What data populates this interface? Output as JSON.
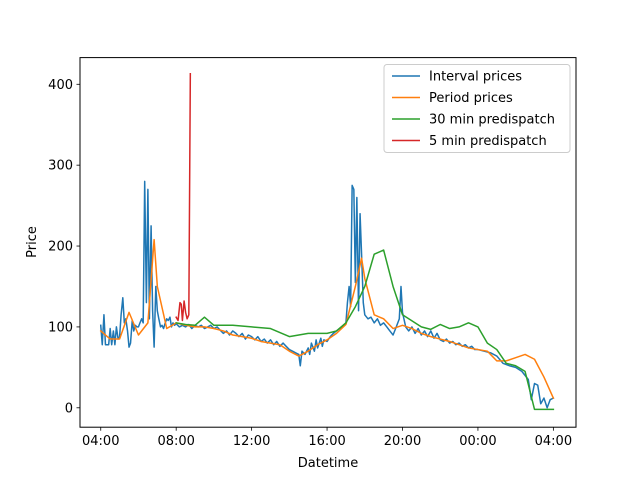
{
  "chart_data": {
    "type": "line",
    "title": "",
    "xlabel": "Datetime",
    "ylabel": "Price",
    "x_unit": "hours from 04:00 on the first day",
    "xlim": [
      -1.1,
      25.2
    ],
    "ylim": [
      -24,
      433
    ],
    "x_ticks": [
      {
        "x": 0,
        "label": "04:00"
      },
      {
        "x": 4,
        "label": "08:00"
      },
      {
        "x": 8,
        "label": "12:00"
      },
      {
        "x": 12,
        "label": "16:00"
      },
      {
        "x": 16,
        "label": "20:00"
      },
      {
        "x": 20,
        "label": "00:00"
      },
      {
        "x": 24,
        "label": "04:00"
      }
    ],
    "y_ticks": [
      {
        "y": 0,
        "label": "0"
      },
      {
        "y": 100,
        "label": "100"
      },
      {
        "y": 200,
        "label": "200"
      },
      {
        "y": 300,
        "label": "300"
      },
      {
        "y": 400,
        "label": "400"
      }
    ],
    "grid": false,
    "legend_position": "top-right",
    "series": [
      {
        "name": "Interval prices",
        "color": "#1f77b4",
        "points": [
          [
            0.0,
            102
          ],
          [
            0.08,
            78
          ],
          [
            0.17,
            115
          ],
          [
            0.25,
            78
          ],
          [
            0.33,
            78
          ],
          [
            0.42,
            78
          ],
          [
            0.5,
            98
          ],
          [
            0.58,
            78
          ],
          [
            0.67,
            95
          ],
          [
            0.75,
            78
          ],
          [
            0.83,
            100
          ],
          [
            0.92,
            85
          ],
          [
            1.0,
            88
          ],
          [
            1.08,
            115
          ],
          [
            1.17,
            136
          ],
          [
            1.25,
            105
          ],
          [
            1.33,
            110
          ],
          [
            1.42,
            95
          ],
          [
            1.5,
            75
          ],
          [
            1.58,
            80
          ],
          [
            1.67,
            108
          ],
          [
            1.75,
            95
          ],
          [
            1.83,
            102
          ],
          [
            1.92,
            100
          ],
          [
            2.0,
            100
          ],
          [
            2.08,
            105
          ],
          [
            2.17,
            110
          ],
          [
            2.25,
            105
          ],
          [
            2.33,
            280
          ],
          [
            2.42,
            130
          ],
          [
            2.5,
            270
          ],
          [
            2.58,
            110
          ],
          [
            2.67,
            225
          ],
          [
            2.75,
            120
          ],
          [
            2.83,
            75
          ],
          [
            2.92,
            150
          ],
          [
            3.0,
            120
          ],
          [
            3.08,
            110
          ],
          [
            3.17,
            100
          ],
          [
            3.25,
            102
          ],
          [
            3.33,
            98
          ],
          [
            3.42,
            105
          ],
          [
            3.5,
            110
          ],
          [
            3.58,
            108
          ],
          [
            3.67,
            112
          ],
          [
            3.75,
            100
          ],
          [
            3.83,
            105
          ],
          [
            3.92,
            102
          ],
          [
            4.0,
            104
          ],
          [
            4.17,
            100
          ],
          [
            4.33,
            102
          ],
          [
            4.5,
            100
          ],
          [
            4.67,
            103
          ],
          [
            4.83,
            98
          ],
          [
            5.0,
            102
          ],
          [
            5.17,
            100
          ],
          [
            5.33,
            102
          ],
          [
            5.5,
            98
          ],
          [
            5.67,
            100
          ],
          [
            5.83,
            102
          ],
          [
            6.0,
            98
          ],
          [
            6.17,
            100
          ],
          [
            6.33,
            96
          ],
          [
            6.5,
            92
          ],
          [
            6.67,
            95
          ],
          [
            6.83,
            90
          ],
          [
            7.0,
            95
          ],
          [
            7.17,
            92
          ],
          [
            7.33,
            88
          ],
          [
            7.5,
            92
          ],
          [
            7.67,
            85
          ],
          [
            7.83,
            90
          ],
          [
            8.0,
            88
          ],
          [
            8.17,
            84
          ],
          [
            8.33,
            88
          ],
          [
            8.5,
            82
          ],
          [
            8.67,
            85
          ],
          [
            8.83,
            80
          ],
          [
            9.0,
            84
          ],
          [
            9.17,
            78
          ],
          [
            9.33,
            82
          ],
          [
            9.5,
            76
          ],
          [
            9.67,
            80
          ],
          [
            9.83,
            76
          ],
          [
            10.0,
            72
          ],
          [
            10.17,
            70
          ],
          [
            10.33,
            68
          ],
          [
            10.5,
            66
          ],
          [
            10.58,
            52
          ],
          [
            10.67,
            70
          ],
          [
            10.83,
            66
          ],
          [
            11.0,
            74
          ],
          [
            11.08,
            66
          ],
          [
            11.17,
            80
          ],
          [
            11.33,
            70
          ],
          [
            11.42,
            84
          ],
          [
            11.5,
            74
          ],
          [
            11.67,
            86
          ],
          [
            11.75,
            76
          ],
          [
            11.83,
            84
          ],
          [
            12.0,
            82
          ],
          [
            12.17,
            88
          ],
          [
            12.33,
            92
          ],
          [
            12.5,
            95
          ],
          [
            12.67,
            98
          ],
          [
            12.83,
            100
          ],
          [
            13.0,
            105
          ],
          [
            13.08,
            130
          ],
          [
            13.17,
            150
          ],
          [
            13.25,
            125
          ],
          [
            13.33,
            275
          ],
          [
            13.42,
            270
          ],
          [
            13.5,
            155
          ],
          [
            13.58,
            260
          ],
          [
            13.67,
            120
          ],
          [
            13.75,
            240
          ],
          [
            13.83,
            190
          ],
          [
            13.92,
            130
          ],
          [
            14.0,
            115
          ],
          [
            14.17,
            110
          ],
          [
            14.33,
            112
          ],
          [
            14.5,
            105
          ],
          [
            14.67,
            110
          ],
          [
            14.83,
            102
          ],
          [
            15.0,
            105
          ],
          [
            15.17,
            100
          ],
          [
            15.33,
            95
          ],
          [
            15.5,
            90
          ],
          [
            15.67,
            100
          ],
          [
            15.83,
            110
          ],
          [
            15.92,
            150
          ],
          [
            16.0,
            118
          ],
          [
            16.17,
            100
          ],
          [
            16.33,
            95
          ],
          [
            16.5,
            100
          ],
          [
            16.67,
            92
          ],
          [
            16.83,
            98
          ],
          [
            17.0,
            90
          ],
          [
            17.17,
            95
          ],
          [
            17.33,
            88
          ],
          [
            17.5,
            95
          ],
          [
            17.67,
            86
          ],
          [
            17.83,
            92
          ],
          [
            18.0,
            84
          ],
          [
            18.17,
            82
          ],
          [
            18.33,
            85
          ],
          [
            18.5,
            80
          ],
          [
            18.67,
            82
          ],
          [
            18.83,
            78
          ],
          [
            19.0,
            80
          ],
          [
            19.17,
            76
          ],
          [
            19.33,
            78
          ],
          [
            19.5,
            74
          ],
          [
            19.67,
            76
          ],
          [
            19.83,
            72
          ],
          [
            20.0,
            72
          ],
          [
            20.33,
            70
          ],
          [
            20.67,
            68
          ],
          [
            21.0,
            64
          ],
          [
            21.33,
            55
          ],
          [
            21.67,
            52
          ],
          [
            22.0,
            50
          ],
          [
            22.33,
            45
          ],
          [
            22.67,
            35
          ],
          [
            22.83,
            10
          ],
          [
            23.0,
            30
          ],
          [
            23.17,
            28
          ],
          [
            23.33,
            5
          ],
          [
            23.5,
            12
          ],
          [
            23.67,
            0
          ],
          [
            23.83,
            10
          ],
          [
            24.0,
            12
          ]
        ]
      },
      {
        "name": "Period prices",
        "color": "#ff7f0e",
        "points": [
          [
            0.0,
            95
          ],
          [
            0.5,
            85
          ],
          [
            1.0,
            85
          ],
          [
            1.5,
            118
          ],
          [
            2.0,
            90
          ],
          [
            2.5,
            105
          ],
          [
            2.83,
            208
          ],
          [
            3.0,
            150
          ],
          [
            3.5,
            98
          ],
          [
            4.0,
            105
          ],
          [
            4.5,
            102
          ],
          [
            5.0,
            100
          ],
          [
            5.5,
            100
          ],
          [
            6.0,
            98
          ],
          [
            6.5,
            95
          ],
          [
            7.0,
            90
          ],
          [
            7.5,
            88
          ],
          [
            8.0,
            86
          ],
          [
            8.5,
            82
          ],
          [
            9.0,
            80
          ],
          [
            9.5,
            78
          ],
          [
            10.0,
            70
          ],
          [
            10.5,
            64
          ],
          [
            11.0,
            70
          ],
          [
            11.5,
            78
          ],
          [
            12.0,
            84
          ],
          [
            12.5,
            92
          ],
          [
            13.0,
            103
          ],
          [
            13.5,
            150
          ],
          [
            13.83,
            185
          ],
          [
            14.0,
            160
          ],
          [
            14.5,
            115
          ],
          [
            15.0,
            110
          ],
          [
            15.5,
            98
          ],
          [
            16.0,
            102
          ],
          [
            16.5,
            98
          ],
          [
            17.0,
            92
          ],
          [
            17.5,
            88
          ],
          [
            18.0,
            85
          ],
          [
            18.5,
            82
          ],
          [
            19.0,
            78
          ],
          [
            19.5,
            74
          ],
          [
            20.0,
            72
          ],
          [
            20.5,
            70
          ],
          [
            21.0,
            58
          ],
          [
            21.5,
            58
          ],
          [
            22.0,
            62
          ],
          [
            22.5,
            66
          ],
          [
            23.0,
            60
          ],
          [
            23.5,
            38
          ],
          [
            24.0,
            12
          ]
        ]
      },
      {
        "name": "30 min predispatch",
        "color": "#2ca02c",
        "points": [
          [
            4.0,
            105
          ],
          [
            4.5,
            103
          ],
          [
            5.0,
            102
          ],
          [
            5.5,
            112
          ],
          [
            6.0,
            102
          ],
          [
            7.0,
            102
          ],
          [
            8.0,
            100
          ],
          [
            9.0,
            98
          ],
          [
            10.0,
            88
          ],
          [
            11.0,
            92
          ],
          [
            12.0,
            92
          ],
          [
            12.5,
            95
          ],
          [
            13.0,
            105
          ],
          [
            13.5,
            125
          ],
          [
            14.0,
            150
          ],
          [
            14.5,
            190
          ],
          [
            15.0,
            195
          ],
          [
            15.5,
            150
          ],
          [
            16.0,
            115
          ],
          [
            17.0,
            100
          ],
          [
            17.5,
            97
          ],
          [
            18.0,
            103
          ],
          [
            18.5,
            98
          ],
          [
            19.0,
            100
          ],
          [
            19.5,
            105
          ],
          [
            20.0,
            100
          ],
          [
            20.5,
            80
          ],
          [
            21.0,
            72
          ],
          [
            21.5,
            55
          ],
          [
            22.0,
            52
          ],
          [
            22.5,
            45
          ],
          [
            23.0,
            -2
          ],
          [
            23.5,
            -2
          ],
          [
            24.0,
            -2
          ]
        ]
      },
      {
        "name": "5 min predispatch",
        "color": "#d62728",
        "points": [
          [
            4.0,
            112
          ],
          [
            4.1,
            108
          ],
          [
            4.2,
            130
          ],
          [
            4.27,
            128
          ],
          [
            4.33,
            108
          ],
          [
            4.42,
            132
          ],
          [
            4.5,
            118
          ],
          [
            4.58,
            110
          ],
          [
            4.67,
            115
          ],
          [
            4.75,
            413
          ]
        ]
      }
    ]
  }
}
